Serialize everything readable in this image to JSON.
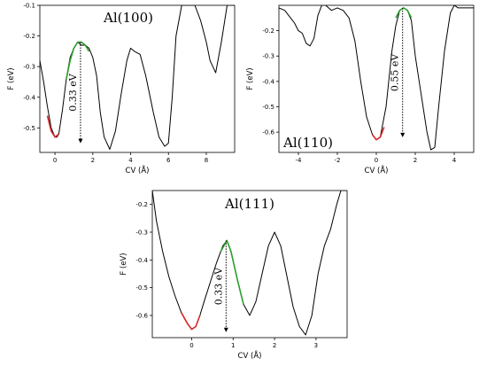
{
  "colors": {
    "curve": "#000000",
    "fit_left": "#d62728",
    "fit_right": "#2ca02c"
  },
  "chart_data": [
    {
      "type": "line",
      "title": "Al(100)",
      "xlabel": "CV (Å)",
      "ylabel": "F (eV)",
      "xlim": [
        -0.8,
        9.5
      ],
      "ylim": [
        -0.58,
        -0.1
      ],
      "xticks": [
        0,
        2,
        4,
        6,
        8
      ],
      "yticks": [
        -0.5,
        -0.4,
        -0.3,
        -0.2,
        -0.1
      ],
      "annotation": {
        "text": "0.33 eV",
        "x": 1.35,
        "y_top": -0.22,
        "y_bottom": -0.55
      },
      "series": [
        {
          "color": "black",
          "x": [
            -0.8,
            -0.6,
            -0.4,
            -0.2,
            0.0,
            0.1,
            0.2,
            0.4,
            0.6,
            0.8,
            1.0,
            1.2,
            1.4,
            1.6,
            1.8,
            2.0,
            2.2,
            2.4,
            2.6,
            2.9,
            3.2,
            3.5,
            3.8,
            4.0,
            4.2,
            4.5,
            4.8,
            5.2,
            5.5,
            5.8,
            6.0,
            6.2,
            6.4,
            6.7,
            7.0,
            7.4,
            7.7,
            8.0,
            8.2,
            8.5,
            8.8,
            9.1,
            9.5
          ],
          "y": [
            -0.28,
            -0.35,
            -0.43,
            -0.5,
            -0.53,
            -0.53,
            -0.52,
            -0.44,
            -0.34,
            -0.27,
            -0.24,
            -0.22,
            -0.23,
            -0.23,
            -0.24,
            -0.27,
            -0.33,
            -0.45,
            -0.53,
            -0.57,
            -0.51,
            -0.39,
            -0.28,
            -0.24,
            -0.25,
            -0.26,
            -0.33,
            -0.45,
            -0.53,
            -0.56,
            -0.55,
            -0.4,
            -0.2,
            -0.1,
            -0.1,
            -0.1,
            -0.15,
            -0.22,
            -0.28,
            -0.32,
            -0.22,
            -0.1,
            -0.1
          ]
        },
        {
          "color": "red",
          "x": [
            -0.4,
            -0.2,
            0.0,
            0.2
          ],
          "y": [
            -0.46,
            -0.51,
            -0.53,
            -0.52
          ]
        },
        {
          "color": "green",
          "x": [
            0.6,
            0.8,
            1.0,
            1.2,
            1.4,
            1.6,
            1.8
          ],
          "y": [
            -0.34,
            -0.28,
            -0.24,
            -0.22,
            -0.22,
            -0.23,
            -0.25
          ]
        }
      ]
    },
    {
      "type": "line",
      "title": "Al(110)",
      "xlabel": "CV (Å)",
      "ylabel": "F (eV)",
      "xlim": [
        -5,
        5
      ],
      "ylim": [
        -0.68,
        -0.1
      ],
      "xticks": [
        -4,
        -2,
        0,
        2,
        4
      ],
      "yticks": [
        -0.6,
        -0.5,
        -0.4,
        -0.3,
        -0.2
      ],
      "annotation": {
        "text": "0.55 eV",
        "x": 1.35,
        "y_top": -0.11,
        "y_bottom": -0.62
      },
      "series": [
        {
          "color": "black",
          "x": [
            -5.0,
            -4.7,
            -4.4,
            -4.2,
            -4.0,
            -3.8,
            -3.6,
            -3.4,
            -3.2,
            -3.0,
            -2.8,
            -2.6,
            -2.3,
            -2.0,
            -1.7,
            -1.4,
            -1.1,
            -0.8,
            -0.5,
            -0.2,
            0.0,
            0.2,
            0.5,
            0.8,
            1.0,
            1.2,
            1.4,
            1.6,
            1.8,
            2.0,
            2.3,
            2.6,
            2.8,
            3.0,
            3.2,
            3.5,
            3.8,
            4.0,
            4.2,
            4.5,
            5.0
          ],
          "y": [
            -0.11,
            -0.12,
            -0.15,
            -0.17,
            -0.2,
            -0.21,
            -0.25,
            -0.26,
            -0.23,
            -0.14,
            -0.1,
            -0.1,
            -0.12,
            -0.11,
            -0.12,
            -0.15,
            -0.24,
            -0.4,
            -0.54,
            -0.61,
            -0.63,
            -0.62,
            -0.5,
            -0.28,
            -0.18,
            -0.12,
            -0.11,
            -0.12,
            -0.16,
            -0.3,
            -0.45,
            -0.6,
            -0.67,
            -0.66,
            -0.5,
            -0.28,
            -0.13,
            -0.1,
            -0.11,
            -0.11,
            -0.11
          ]
        },
        {
          "color": "red",
          "x": [
            -0.2,
            0.0,
            0.2,
            0.4
          ],
          "y": [
            -0.61,
            -0.63,
            -0.62,
            -0.58
          ]
        },
        {
          "color": "green",
          "x": [
            1.0,
            1.2,
            1.4,
            1.6,
            1.8
          ],
          "y": [
            -0.15,
            -0.12,
            -0.11,
            -0.12,
            -0.15
          ]
        }
      ]
    },
    {
      "type": "line",
      "title": "Al(111)",
      "xlabel": "CV (Å)",
      "ylabel": "F (eV)",
      "xlim": [
        -0.95,
        3.75
      ],
      "ylim": [
        -0.68,
        -0.15
      ],
      "xticks": [
        0,
        1,
        2,
        3
      ],
      "yticks": [
        -0.6,
        -0.5,
        -0.4,
        -0.3,
        -0.2
      ],
      "annotation": {
        "text": "0.33 eV",
        "x": 0.83,
        "y_top": -0.33,
        "y_bottom": -0.66
      },
      "series": [
        {
          "color": "black",
          "x": [
            -0.95,
            -0.85,
            -0.7,
            -0.55,
            -0.4,
            -0.25,
            -0.1,
            0.0,
            0.1,
            0.2,
            0.3,
            0.45,
            0.6,
            0.75,
            0.85,
            0.95,
            1.1,
            1.25,
            1.4,
            1.55,
            1.7,
            1.85,
            2.0,
            2.15,
            2.3,
            2.45,
            2.6,
            2.75,
            2.9,
            3.05,
            3.2,
            3.35,
            3.5,
            3.6,
            3.75
          ],
          "y": [
            -0.15,
            -0.26,
            -0.37,
            -0.46,
            -0.53,
            -0.59,
            -0.63,
            -0.65,
            -0.64,
            -0.6,
            -0.55,
            -0.48,
            -0.41,
            -0.35,
            -0.33,
            -0.37,
            -0.47,
            -0.56,
            -0.6,
            -0.55,
            -0.45,
            -0.35,
            -0.3,
            -0.35,
            -0.46,
            -0.57,
            -0.64,
            -0.67,
            -0.6,
            -0.45,
            -0.35,
            -0.29,
            -0.2,
            -0.15,
            -0.15
          ]
        },
        {
          "color": "red",
          "x": [
            -0.25,
            -0.1,
            0.0,
            0.1,
            0.2
          ],
          "y": [
            -0.59,
            -0.63,
            -0.65,
            -0.64,
            -0.6
          ]
        },
        {
          "color": "green",
          "x": [
            0.7,
            0.85,
            0.95,
            1.1,
            1.25
          ],
          "y": [
            -0.37,
            -0.33,
            -0.37,
            -0.47,
            -0.56
          ]
        }
      ]
    }
  ]
}
